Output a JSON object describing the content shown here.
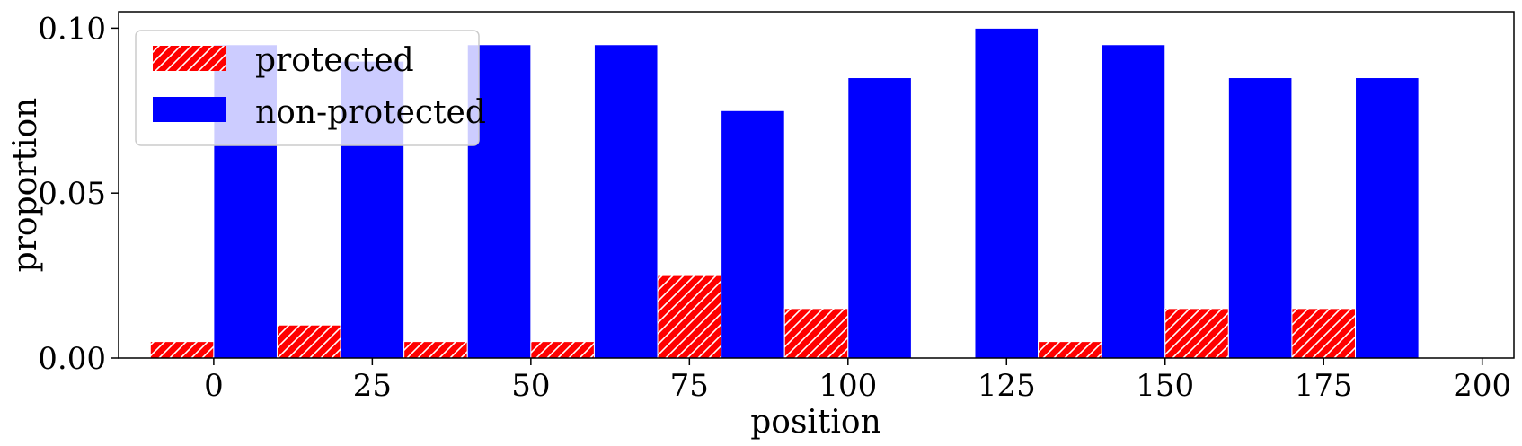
{
  "chart_data": {
    "type": "bar",
    "title": "",
    "xlabel": "position",
    "ylabel": "proportion",
    "xlim": [
      -15,
      205
    ],
    "ylim": [
      0,
      0.105
    ],
    "bin_width": 20,
    "bar_centers": [
      0,
      20,
      40,
      60,
      80,
      100,
      120,
      140,
      160,
      180
    ],
    "x_ticks": [
      "0",
      "25",
      "50",
      "75",
      "100",
      "125",
      "150",
      "175",
      "200"
    ],
    "y_ticks": [
      "0.00",
      "0.05",
      "0.10"
    ],
    "grid": false,
    "legend_position": "top-left",
    "series": [
      {
        "name": "protected",
        "color": "#ff0000",
        "pattern": "hatched",
        "values": [
          0.005,
          0.01,
          0.005,
          0.005,
          0.025,
          0.015,
          0.0,
          0.005,
          0.015,
          0.015
        ]
      },
      {
        "name": "non-protected",
        "color": "#0000ff",
        "pattern": "solid",
        "values": [
          0.095,
          0.09,
          0.095,
          0.095,
          0.075,
          0.085,
          0.1,
          0.095,
          0.085,
          0.085
        ]
      }
    ]
  }
}
